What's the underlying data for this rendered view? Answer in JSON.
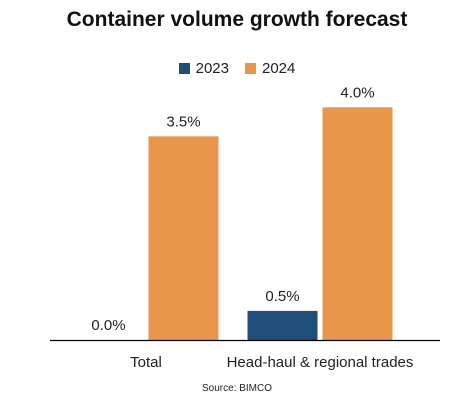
{
  "colors": {
    "2023": "#1f4e79",
    "2024": "#e8964a",
    "axis": "#000000"
  },
  "source": "Source: BIMCO",
  "chart_data": {
    "type": "bar",
    "title": "Container volume growth forecast",
    "categories": [
      "Total",
      "Head-haul & regional trades"
    ],
    "series": [
      {
        "name": "2023",
        "values": [
          0.0,
          0.5
        ],
        "labels": [
          "0.0%",
          "0.5%"
        ]
      },
      {
        "name": "2024",
        "values": [
          3.5,
          4.0
        ],
        "labels": [
          "3.5%",
          "4.0%"
        ]
      }
    ],
    "xlabel": "",
    "ylabel": "",
    "ylim": [
      0,
      4.4
    ],
    "grid": false,
    "legend": "top-center"
  }
}
